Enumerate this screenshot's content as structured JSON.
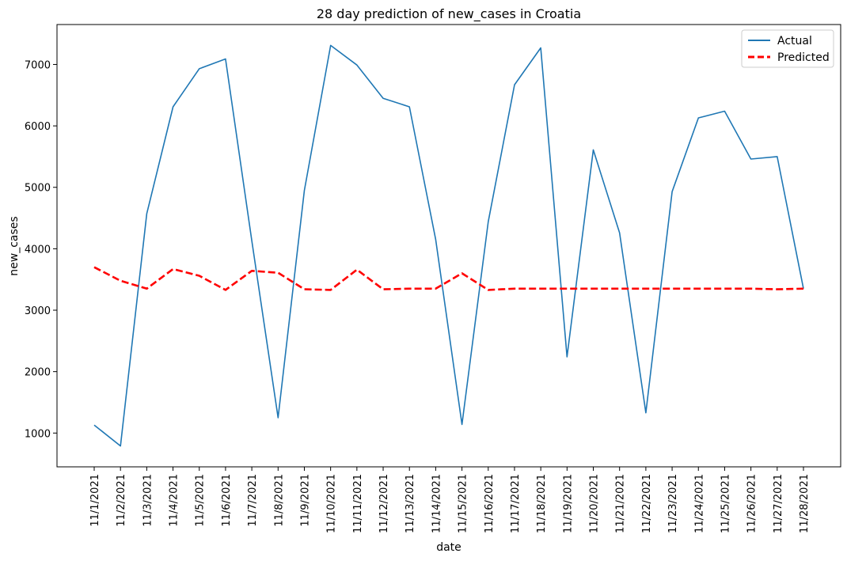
{
  "chart_data": {
    "type": "line",
    "title": "28 day prediction of new_cases in Croatia",
    "xlabel": "date",
    "ylabel": "new_cases",
    "x": [
      "11/1/2021",
      "11/2/2021",
      "11/3/2021",
      "11/4/2021",
      "11/5/2021",
      "11/6/2021",
      "11/7/2021",
      "11/8/2021",
      "11/9/2021",
      "11/10/2021",
      "11/11/2021",
      "11/12/2021",
      "11/13/2021",
      "11/14/2021",
      "11/15/2021",
      "11/16/2021",
      "11/17/2021",
      "11/18/2021",
      "11/19/2021",
      "11/20/2021",
      "11/21/2021",
      "11/22/2021",
      "11/23/2021",
      "11/24/2021",
      "11/25/2021",
      "11/26/2021",
      "11/27/2021",
      "11/28/2021"
    ],
    "ylim": [
      450,
      7650
    ],
    "yticks": [
      1000,
      2000,
      3000,
      4000,
      5000,
      6000,
      7000
    ],
    "grid": false,
    "legend_position": "upper right",
    "series": [
      {
        "name": "Actual",
        "color": "#1f77b4",
        "style": "solid",
        "values": [
          1130,
          790,
          4570,
          6310,
          6930,
          7090,
          4130,
          1250,
          4950,
          7310,
          6990,
          6450,
          6310,
          4150,
          1140,
          4440,
          6670,
          7270,
          2240,
          5610,
          4260,
          1330,
          4930,
          6130,
          6240,
          5460,
          5500,
          3350
        ]
      },
      {
        "name": "Predicted",
        "color": "#ff0000",
        "style": "dashed",
        "values": [
          3700,
          3480,
          3350,
          3670,
          3560,
          3330,
          3640,
          3610,
          3340,
          3330,
          3660,
          3340,
          3350,
          3350,
          3600,
          3330,
          3350,
          3350,
          3350,
          3350,
          3350,
          3350,
          3350,
          3350,
          3350,
          3350,
          3340,
          3350
        ]
      }
    ]
  }
}
